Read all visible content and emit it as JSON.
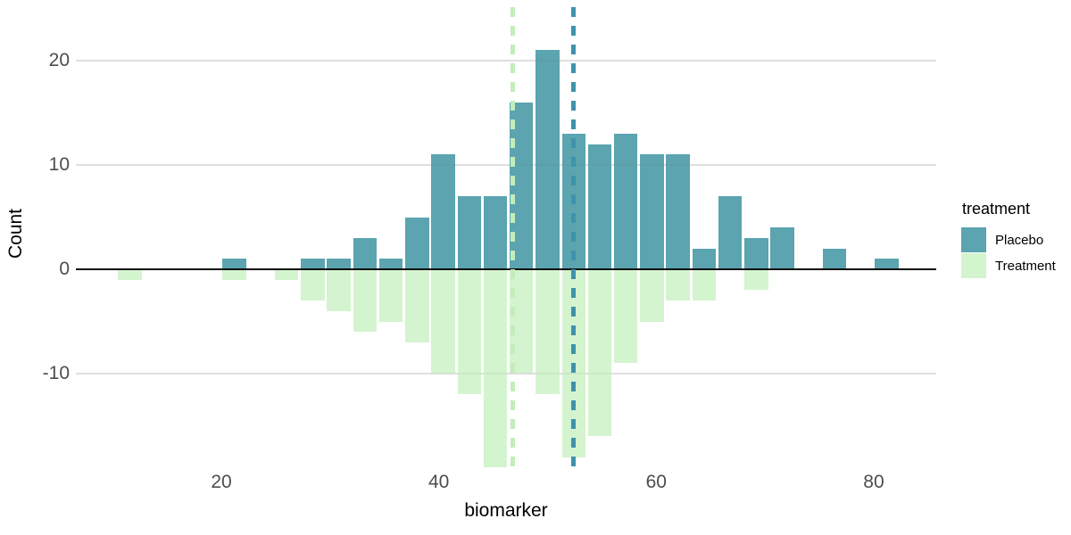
{
  "chart_data": {
    "type": "bar",
    "subtype": "mirrored-histogram",
    "title": "",
    "xlabel": "biomarker",
    "ylabel": "Count",
    "grid": "horizontal-major-only",
    "legend": {
      "title": "treatment",
      "position": "right",
      "entries": [
        {
          "label": "Placebo",
          "color": "#5ba4b0"
        },
        {
          "label": "Treatment",
          "color": "#d4f4cf"
        }
      ]
    },
    "x_ticks": [
      20,
      40,
      60,
      80
    ],
    "y_ticks": [
      20,
      10,
      0,
      -10
    ],
    "xlim": [
      6.6,
      85.8
    ],
    "ylim": [
      -19.1,
      25.1
    ],
    "bin_width": 2.4,
    "bin_centers": [
      11.6,
      14.0,
      16.4,
      18.8,
      21.2,
      23.6,
      26.0,
      28.4,
      30.8,
      33.2,
      35.6,
      38.0,
      40.4,
      42.8,
      45.2,
      47.6,
      50.0,
      52.4,
      54.8,
      57.2,
      59.6,
      62.0,
      64.4,
      66.8,
      69.2,
      71.6,
      74.0,
      76.4,
      78.8,
      81.2
    ],
    "series": [
      {
        "name": "Placebo",
        "direction": "up",
        "color": "#5ba4b0",
        "counts": [
          0,
          0,
          0,
          0,
          1,
          0,
          0,
          1,
          1,
          3,
          1,
          5,
          11,
          7,
          7,
          16,
          21,
          13,
          12,
          13,
          11,
          11,
          2,
          7,
          3,
          4,
          0,
          2,
          0,
          1
        ]
      },
      {
        "name": "Treatment",
        "direction": "down",
        "color": "#d4f4cf",
        "counts": [
          1,
          0,
          0,
          0,
          1,
          0,
          1,
          3,
          4,
          6,
          5,
          7,
          10,
          12,
          19,
          10,
          12,
          18,
          16,
          9,
          5,
          3,
          3,
          0,
          2,
          0,
          0,
          0,
          0,
          0
        ]
      }
    ],
    "mean_lines": [
      {
        "series": "Treatment",
        "x": 46.8,
        "color": "#c3edba",
        "style": "dashed"
      },
      {
        "series": "Placebo",
        "x": 52.4,
        "color": "#3e93ac",
        "style": "dashed"
      }
    ]
  },
  "colors": {
    "background": "#ffffff",
    "gridline": "#ebebeb",
    "axis_line": "#111111",
    "tick_label": "#4d4d4d",
    "title_text": "#000000"
  }
}
